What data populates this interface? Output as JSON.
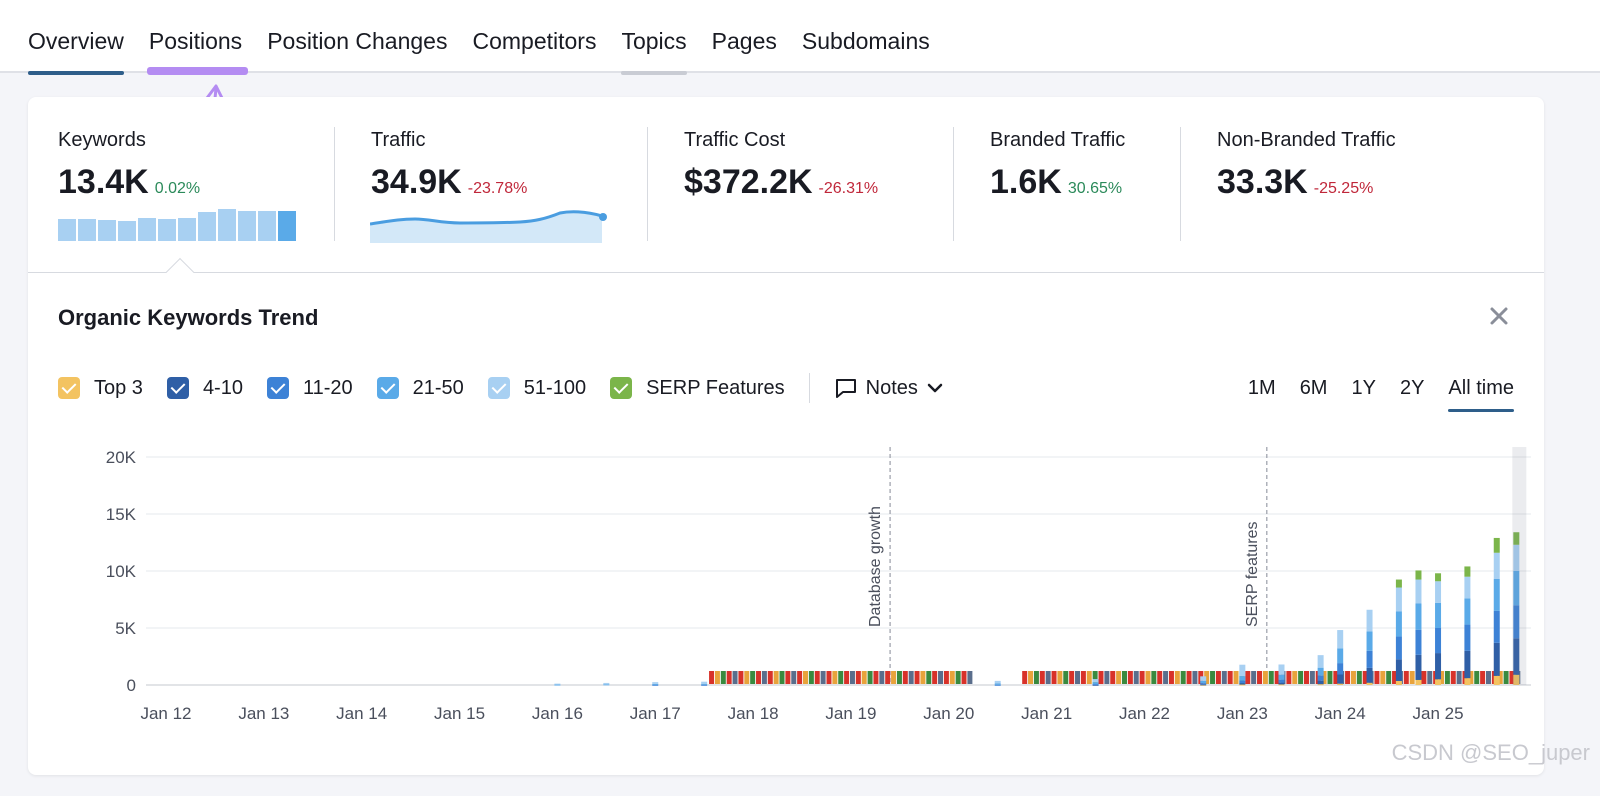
{
  "tabs": [
    {
      "label": "Overview"
    },
    {
      "label": "Positions"
    },
    {
      "label": "Position Changes"
    },
    {
      "label": "Competitors"
    },
    {
      "label": "Topics"
    },
    {
      "label": "Pages"
    },
    {
      "label": "Subdomains"
    }
  ],
  "metrics": [
    {
      "label": "Keywords",
      "value": "13.4K",
      "delta": "0.02%"
    },
    {
      "label": "Traffic",
      "value": "34.9K",
      "delta": "-23.78%"
    },
    {
      "label": "Traffic Cost",
      "value": "$372.2K",
      "delta": "-26.31%"
    },
    {
      "label": "Branded Traffic",
      "value": "1.6K",
      "delta": "30.65%"
    },
    {
      "label": "Non-Branded Traffic",
      "value": "33.3K",
      "delta": "-25.25%"
    }
  ],
  "trend": {
    "title": "Organic Keywords Trend",
    "legend": [
      {
        "label": "Top 3",
        "color": "#f3c361"
      },
      {
        "label": "4-10",
        "color": "#2f5fa6"
      },
      {
        "label": "11-20",
        "color": "#3d82d6"
      },
      {
        "label": "21-50",
        "color": "#5aaae8"
      },
      {
        "label": "51-100",
        "color": "#a8d0f2"
      },
      {
        "label": "SERP Features",
        "color": "#7bb54a"
      }
    ],
    "notes_label": "Notes",
    "ranges": [
      "1M",
      "6M",
      "1Y",
      "2Y",
      "All time"
    ],
    "active_range": "All time"
  },
  "chart_data": {
    "type": "bar",
    "stacked": true,
    "series_order": [
      "Top 3",
      "4-10",
      "11-20",
      "21-50",
      "51-100",
      "SERP Features"
    ],
    "x_ticks": [
      "Jan 12",
      "Jan 13",
      "Jan 14",
      "Jan 15",
      "Jan 16",
      "Jan 17",
      "Jan 18",
      "Jan 19",
      "Jan 20",
      "Jan 21",
      "Jan 22",
      "Jan 23",
      "Jan 24",
      "Jan 25"
    ],
    "y_ticks": [
      "0",
      "5K",
      "10K",
      "15K",
      "20K"
    ],
    "ylim": [
      0,
      20000
    ],
    "grid": true,
    "annotations": [
      {
        "label": "Database growth",
        "x": 2019.4
      },
      {
        "label": "SERP features",
        "x": 2023.25
      }
    ],
    "bars": [
      {
        "x": 2016.0,
        "top3": 0,
        "p4_10": 0,
        "p11_20": 0,
        "p21_50": 40,
        "p51_100": 80,
        "serp": 0
      },
      {
        "x": 2016.5,
        "top3": 0,
        "p4_10": 0,
        "p11_20": 0,
        "p21_50": 60,
        "p51_100": 120,
        "serp": 0
      },
      {
        "x": 2017.0,
        "top3": 0,
        "p4_10": 0,
        "p11_20": 20,
        "p21_50": 80,
        "p51_100": 150,
        "serp": 0
      },
      {
        "x": 2017.5,
        "top3": 0,
        "p4_10": 0,
        "p11_20": 20,
        "p21_50": 90,
        "p51_100": 180,
        "serp": 0
      },
      {
        "x": 2020.5,
        "top3": 0,
        "p4_10": 0,
        "p11_20": 20,
        "p21_50": 110,
        "p51_100": 230,
        "serp": 0
      },
      {
        "x": 2021.5,
        "top3": 0,
        "p4_10": 20,
        "p11_20": 60,
        "p21_50": 160,
        "p51_100": 280,
        "serp": 0
      },
      {
        "x": 2022.6,
        "top3": 20,
        "p4_10": 40,
        "p11_20": 100,
        "p21_50": 200,
        "p51_100": 400,
        "serp": 0
      },
      {
        "x": 2023.0,
        "top3": 40,
        "p4_10": 120,
        "p11_20": 220,
        "p21_50": 400,
        "p51_100": 1000,
        "serp": 0
      },
      {
        "x": 2023.4,
        "top3": 50,
        "p4_10": 150,
        "p11_20": 250,
        "p21_50": 450,
        "p51_100": 900,
        "serp": 0
      },
      {
        "x": 2023.8,
        "top3": 70,
        "p4_10": 300,
        "p11_20": 450,
        "p21_50": 700,
        "p51_100": 1100,
        "serp": 0
      },
      {
        "x": 2024.0,
        "top3": 120,
        "p4_10": 800,
        "p11_20": 1000,
        "p21_50": 1300,
        "p51_100": 1600,
        "serp": 0
      },
      {
        "x": 2024.3,
        "top3": 200,
        "p4_10": 1300,
        "p11_20": 1500,
        "p21_50": 1700,
        "p51_100": 1900,
        "serp": 0
      },
      {
        "x": 2024.6,
        "top3": 350,
        "p4_10": 1900,
        "p11_20": 2000,
        "p21_50": 2200,
        "p51_100": 2100,
        "serp": 700
      },
      {
        "x": 2024.8,
        "top3": 450,
        "p4_10": 2200,
        "p11_20": 2200,
        "p21_50": 2300,
        "p51_100": 2100,
        "serp": 800
      },
      {
        "x": 2025.0,
        "top3": 500,
        "p4_10": 2300,
        "p11_20": 2200,
        "p21_50": 2200,
        "p51_100": 1900,
        "serp": 700
      },
      {
        "x": 2025.3,
        "top3": 600,
        "p4_10": 2400,
        "p11_20": 2300,
        "p21_50": 2300,
        "p51_100": 1900,
        "serp": 900
      },
      {
        "x": 2025.6,
        "top3": 800,
        "p4_10": 2900,
        "p11_20": 2800,
        "p21_50": 2800,
        "p51_100": 2300,
        "serp": 1300
      },
      {
        "x": 2025.8,
        "top3": 900,
        "p4_10": 3200,
        "p11_20": 2900,
        "p21_50": 3000,
        "p51_100": 2300,
        "serp": 1100
      }
    ]
  },
  "watermark": "CSDN @SEO_juper"
}
